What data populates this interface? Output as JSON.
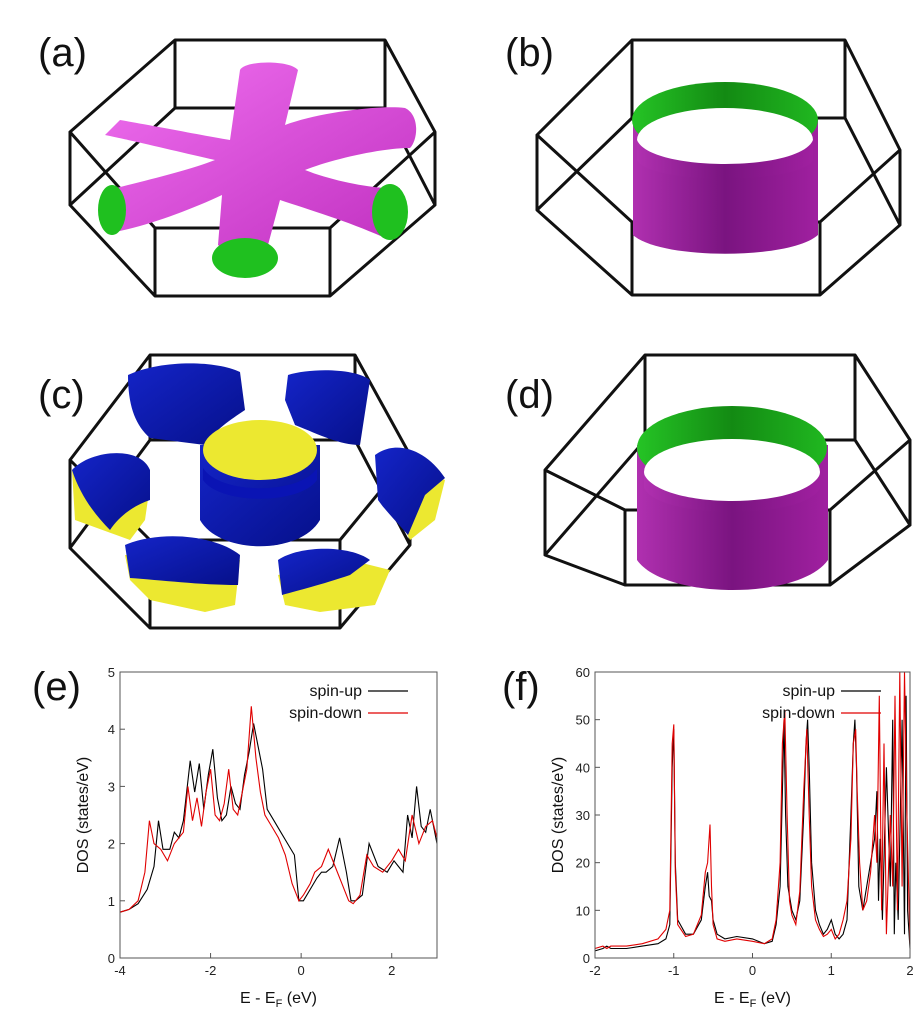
{
  "panels": {
    "a": {
      "label": "(a)"
    },
    "b": {
      "label": "(b)"
    },
    "c": {
      "label": "(c)"
    },
    "d": {
      "label": "(d)"
    },
    "e": {
      "label": "(e)"
    },
    "f": {
      "label": "(f)"
    }
  },
  "colors": {
    "magenta": "#e040e0",
    "green": "#1fc01f",
    "purple": "#a020a0",
    "blue": "#0a14b4",
    "yellow": "#ece830",
    "spin_up": "#000000",
    "spin_down": "#e00000"
  },
  "chart_data": [
    {
      "type": "line",
      "panel": "(e)",
      "title": "",
      "xlabel": "E - E",
      "xlabel_sub": "F",
      "xlabel_unit": " (eV)",
      "ylabel": "DOS (states/eV)",
      "xlim": [
        -4,
        3
      ],
      "ylim": [
        0,
        5
      ],
      "xticks": [
        -4,
        -2,
        0,
        2
      ],
      "yticks": [
        0,
        1,
        2,
        3,
        4,
        5
      ],
      "legend": "top-right",
      "series": [
        {
          "name": "spin-up",
          "color": "#000000",
          "x": [
            -4,
            -3.8,
            -3.6,
            -3.4,
            -3.25,
            -3.15,
            -3.05,
            -2.9,
            -2.8,
            -2.7,
            -2.6,
            -2.45,
            -2.35,
            -2.25,
            -2.15,
            -2.05,
            -1.95,
            -1.85,
            -1.75,
            -1.65,
            -1.55,
            -1.45,
            -1.35,
            -1.25,
            -1.15,
            -1.05,
            -0.95,
            -0.85,
            -0.75,
            -0.6,
            -0.45,
            -0.3,
            -0.15,
            -0.05,
            0.05,
            0.2,
            0.35,
            0.45,
            0.55,
            0.7,
            0.85,
            1.0,
            1.1,
            1.2,
            1.35,
            1.5,
            1.7,
            1.9,
            2.05,
            2.15,
            2.25,
            2.35,
            2.45,
            2.55,
            2.65,
            2.75,
            2.85,
            3.0
          ],
          "y": [
            0.8,
            0.85,
            0.95,
            1.2,
            1.6,
            2.4,
            1.9,
            1.9,
            2.2,
            2.1,
            2.4,
            3.45,
            2.9,
            3.4,
            2.6,
            3.2,
            3.65,
            2.8,
            2.4,
            2.5,
            3.0,
            2.7,
            2.6,
            3.2,
            3.6,
            4.1,
            3.7,
            3.3,
            2.6,
            2.4,
            2.2,
            2.0,
            1.8,
            1.0,
            1.0,
            1.2,
            1.4,
            1.5,
            1.5,
            1.6,
            2.1,
            1.5,
            1.0,
            1.0,
            1.1,
            2.0,
            1.6,
            1.5,
            1.7,
            1.6,
            1.5,
            2.5,
            2.1,
            3.0,
            2.3,
            2.2,
            2.6,
            2.0
          ]
        },
        {
          "name": "spin-down",
          "color": "#e00000",
          "x": [
            -4,
            -3.8,
            -3.6,
            -3.45,
            -3.35,
            -3.25,
            -3.1,
            -2.95,
            -2.8,
            -2.6,
            -2.5,
            -2.4,
            -2.3,
            -2.2,
            -2.1,
            -2.0,
            -1.9,
            -1.8,
            -1.7,
            -1.6,
            -1.5,
            -1.4,
            -1.3,
            -1.2,
            -1.1,
            -1.0,
            -0.9,
            -0.8,
            -0.65,
            -0.5,
            -0.35,
            -0.2,
            -0.05,
            0.05,
            0.2,
            0.3,
            0.45,
            0.6,
            0.75,
            0.9,
            1.05,
            1.15,
            1.3,
            1.45,
            1.6,
            1.8,
            2.0,
            2.15,
            2.3,
            2.45,
            2.6,
            2.75,
            2.9,
            3.0
          ],
          "y": [
            0.8,
            0.85,
            1.0,
            1.5,
            2.4,
            2.0,
            1.9,
            1.7,
            2.0,
            2.2,
            3.0,
            2.4,
            2.8,
            2.3,
            2.9,
            3.3,
            2.5,
            2.4,
            2.7,
            3.3,
            2.6,
            2.5,
            2.9,
            3.3,
            4.4,
            3.5,
            2.9,
            2.5,
            2.3,
            2.1,
            1.8,
            1.3,
            1.0,
            1.1,
            1.3,
            1.5,
            1.6,
            1.9,
            1.6,
            1.3,
            1.0,
            0.95,
            1.1,
            1.8,
            1.6,
            1.5,
            1.7,
            1.9,
            1.7,
            2.5,
            2.0,
            2.3,
            2.4,
            2.1
          ]
        }
      ]
    },
    {
      "type": "line",
      "panel": "(f)",
      "title": "",
      "xlabel": "E - E",
      "xlabel_sub": "F",
      "xlabel_unit": " (eV)",
      "ylabel": "DOS (states/eV)",
      "xlim": [
        -2,
        2
      ],
      "ylim": [
        0,
        60
      ],
      "xticks": [
        -2,
        -1,
        0,
        1,
        2
      ],
      "yticks": [
        0,
        10,
        20,
        30,
        40,
        50,
        60
      ],
      "legend": "top-right",
      "series": [
        {
          "name": "spin-up",
          "color": "#000000",
          "x": [
            -2,
            -1.9,
            -1.85,
            -1.8,
            -1.6,
            -1.4,
            -1.2,
            -1.1,
            -1.05,
            -1.02,
            -1.0,
            -0.98,
            -0.95,
            -0.85,
            -0.75,
            -0.65,
            -0.6,
            -0.57,
            -0.55,
            -0.52,
            -0.5,
            -0.45,
            -0.35,
            -0.2,
            0,
            0.15,
            0.25,
            0.3,
            0.35,
            0.38,
            0.4,
            0.42,
            0.45,
            0.5,
            0.55,
            0.6,
            0.65,
            0.68,
            0.7,
            0.72,
            0.75,
            0.8,
            0.85,
            0.9,
            0.95,
            1.0,
            1.05,
            1.1,
            1.15,
            1.2,
            1.25,
            1.28,
            1.3,
            1.32,
            1.35,
            1.4,
            1.45,
            1.5,
            1.55,
            1.58,
            1.6,
            1.62,
            1.65,
            1.7,
            1.75,
            1.78,
            1.8,
            1.82,
            1.85,
            1.9,
            1.93,
            1.95,
            1.97,
            2.0
          ],
          "y": [
            1.5,
            2,
            2.5,
            2,
            2,
            2.5,
            3,
            4,
            7,
            40,
            48,
            20,
            8,
            5,
            5,
            8,
            15,
            18,
            13,
            12,
            8,
            5,
            4,
            4.5,
            4,
            3,
            3.5,
            7,
            15,
            35,
            50,
            30,
            15,
            10,
            8,
            12,
            30,
            45,
            50,
            40,
            20,
            10,
            7,
            5,
            6,
            8,
            5,
            4,
            5,
            8,
            30,
            45,
            50,
            40,
            15,
            10,
            15,
            20,
            25,
            35,
            12,
            25,
            8,
            40,
            15,
            50,
            5,
            20,
            8,
            50,
            5,
            55,
            10,
            2
          ]
        },
        {
          "name": "spin-down",
          "color": "#e00000",
          "x": [
            -2,
            -1.9,
            -1.85,
            -1.8,
            -1.6,
            -1.4,
            -1.2,
            -1.1,
            -1.05,
            -1.02,
            -1.0,
            -0.98,
            -0.95,
            -0.85,
            -0.75,
            -0.65,
            -0.6,
            -0.57,
            -0.54,
            -0.52,
            -0.5,
            -0.45,
            -0.35,
            -0.2,
            0,
            0.15,
            0.25,
            0.3,
            0.35,
            0.38,
            0.41,
            0.44,
            0.47,
            0.5,
            0.55,
            0.6,
            0.65,
            0.69,
            0.72,
            0.75,
            0.8,
            0.85,
            0.9,
            0.95,
            1.0,
            1.05,
            1.1,
            1.15,
            1.2,
            1.25,
            1.28,
            1.31,
            1.33,
            1.36,
            1.4,
            1.45,
            1.5,
            1.55,
            1.58,
            1.61,
            1.64,
            1.67,
            1.7,
            1.75,
            1.78,
            1.81,
            1.84,
            1.87,
            1.9,
            1.93,
            1.96,
            2.0
          ],
          "y": [
            2,
            2.5,
            2,
            2.5,
            2.5,
            3,
            4,
            6,
            10,
            45,
            49,
            18,
            7,
            4.5,
            5,
            9,
            18,
            20,
            28,
            15,
            7,
            4,
            3.5,
            4,
            3.5,
            3,
            4,
            8,
            20,
            45,
            52,
            30,
            12,
            9,
            7,
            14,
            35,
            48,
            30,
            15,
            8,
            6,
            4.5,
            5,
            6,
            4,
            5,
            8,
            12,
            25,
            45,
            48,
            35,
            20,
            10,
            12,
            18,
            30,
            20,
            55,
            10,
            45,
            5,
            30,
            15,
            55,
            10,
            60,
            15,
            60,
            30,
            3
          ]
        }
      ]
    }
  ]
}
